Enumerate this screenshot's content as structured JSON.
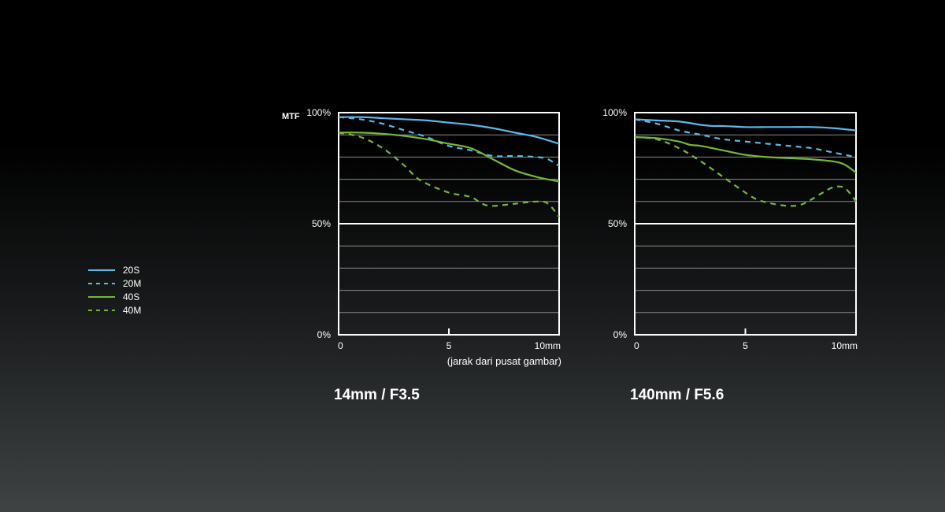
{
  "colors": {
    "s20": "#5bb8ea",
    "s40": "#73b83a",
    "grid": "#8a8a8a",
    "frame": "#ffffff"
  },
  "legend": {
    "items": [
      {
        "label": "20S",
        "color": "#5bb8ea",
        "dashed": false
      },
      {
        "label": "20M",
        "color": "#5bb8ea",
        "dashed": true
      },
      {
        "label": "40S",
        "color": "#73b83a",
        "dashed": false
      },
      {
        "label": "40M",
        "color": "#73b83a",
        "dashed": true
      }
    ]
  },
  "y_axis_title": "MTF",
  "chart_data": [
    {
      "type": "line",
      "title": "14mm / F3.5",
      "xlabel": "(jarak dari pusat gambar)",
      "ylabel": "MTF",
      "xlim": [
        0,
        10
      ],
      "ylim": [
        0,
        100
      ],
      "x_ticks": [
        "0",
        "5",
        "10mm"
      ],
      "y_ticks": [
        "0%",
        "50%",
        "100%"
      ],
      "grid": true,
      "series": [
        {
          "name": "20S",
          "x": [
            0,
            1,
            2,
            3,
            4,
            5,
            6,
            7,
            8,
            9,
            10
          ],
          "y": [
            98,
            98,
            97.5,
            97,
            96.5,
            95.5,
            94.5,
            93,
            91,
            89,
            86
          ]
        },
        {
          "name": "20M",
          "x": [
            0,
            1,
            2,
            3,
            4,
            5,
            6,
            7,
            8,
            9,
            9.5,
            10
          ],
          "y": [
            98,
            97,
            95,
            92,
            89,
            85,
            83,
            80.5,
            80.5,
            80,
            79,
            76
          ]
        },
        {
          "name": "40S",
          "x": [
            0,
            1,
            2,
            3,
            4,
            5,
            6,
            7,
            8,
            9,
            10
          ],
          "y": [
            91,
            91,
            90.5,
            89.5,
            88,
            86,
            84,
            79,
            74,
            71,
            69
          ]
        },
        {
          "name": "40M",
          "x": [
            0,
            1,
            2,
            3,
            3.5,
            4,
            5,
            6,
            6.5,
            7,
            8,
            9,
            9.5,
            10
          ],
          "y": [
            91,
            89,
            84,
            76,
            71,
            68,
            64,
            62,
            59,
            58,
            59,
            60,
            59,
            53
          ]
        }
      ]
    },
    {
      "type": "line",
      "title": "140mm / F5.6",
      "xlabel": "",
      "ylabel": "",
      "xlim": [
        0,
        10
      ],
      "ylim": [
        0,
        100
      ],
      "x_ticks": [
        "0",
        "5",
        "10mm"
      ],
      "y_ticks": [
        "0%",
        "50%",
        "100%"
      ],
      "grid": true,
      "series": [
        {
          "name": "20S",
          "x": [
            0,
            1,
            2,
            3,
            3.5,
            4,
            5,
            6,
            7,
            8,
            9,
            10
          ],
          "y": [
            97,
            96.5,
            96,
            94.5,
            94,
            94,
            93.5,
            93.5,
            93.5,
            93.5,
            93,
            92
          ]
        },
        {
          "name": "20M",
          "x": [
            0,
            1,
            2,
            3,
            4,
            5,
            6,
            7,
            8,
            9,
            10
          ],
          "y": [
            97,
            95,
            92,
            90,
            88,
            87,
            86,
            85,
            84,
            82,
            80
          ]
        },
        {
          "name": "40S",
          "x": [
            0,
            1,
            2,
            2.5,
            3,
            4,
            5,
            6,
            7,
            8,
            9,
            9.5,
            10
          ],
          "y": [
            89,
            88.5,
            87,
            85.5,
            85,
            83,
            81,
            80,
            79.5,
            79,
            78,
            76.5,
            73
          ]
        },
        {
          "name": "40M",
          "x": [
            0,
            1,
            2,
            3,
            4,
            5,
            5.5,
            6,
            6.5,
            7,
            7.5,
            8,
            8.5,
            9,
            9.5,
            10
          ],
          "y": [
            89,
            88,
            84,
            78,
            71,
            64,
            61,
            59.5,
            58.5,
            58,
            58.5,
            61,
            64,
            66.5,
            66,
            60
          ]
        }
      ]
    }
  ]
}
